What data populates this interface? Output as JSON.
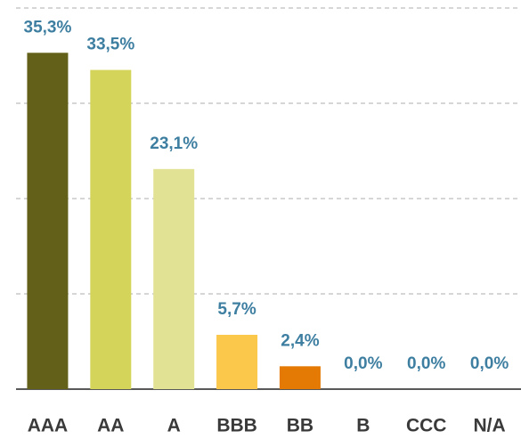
{
  "chart_data": {
    "type": "bar",
    "categories": [
      "AAA",
      "AA",
      "A",
      "BBB",
      "BB",
      "B",
      "CCC",
      "N/A"
    ],
    "values": [
      35.3,
      33.5,
      23.1,
      5.7,
      2.4,
      0.0,
      0.0,
      0.0
    ],
    "value_labels": [
      "35,3%",
      "33,5%",
      "23,1%",
      "5,7%",
      "2,4%",
      "0,0%",
      "0,0%",
      "0,0%"
    ],
    "colors": [
      "#636119",
      "#d4d45a",
      "#e2e294",
      "#fcc84b",
      "#e47a03",
      "#e47a03",
      "#e47a03",
      "#e47a03"
    ],
    "ylim": [
      0,
      40
    ],
    "yticks": [
      0,
      10,
      20,
      30,
      40
    ],
    "grid": true
  }
}
